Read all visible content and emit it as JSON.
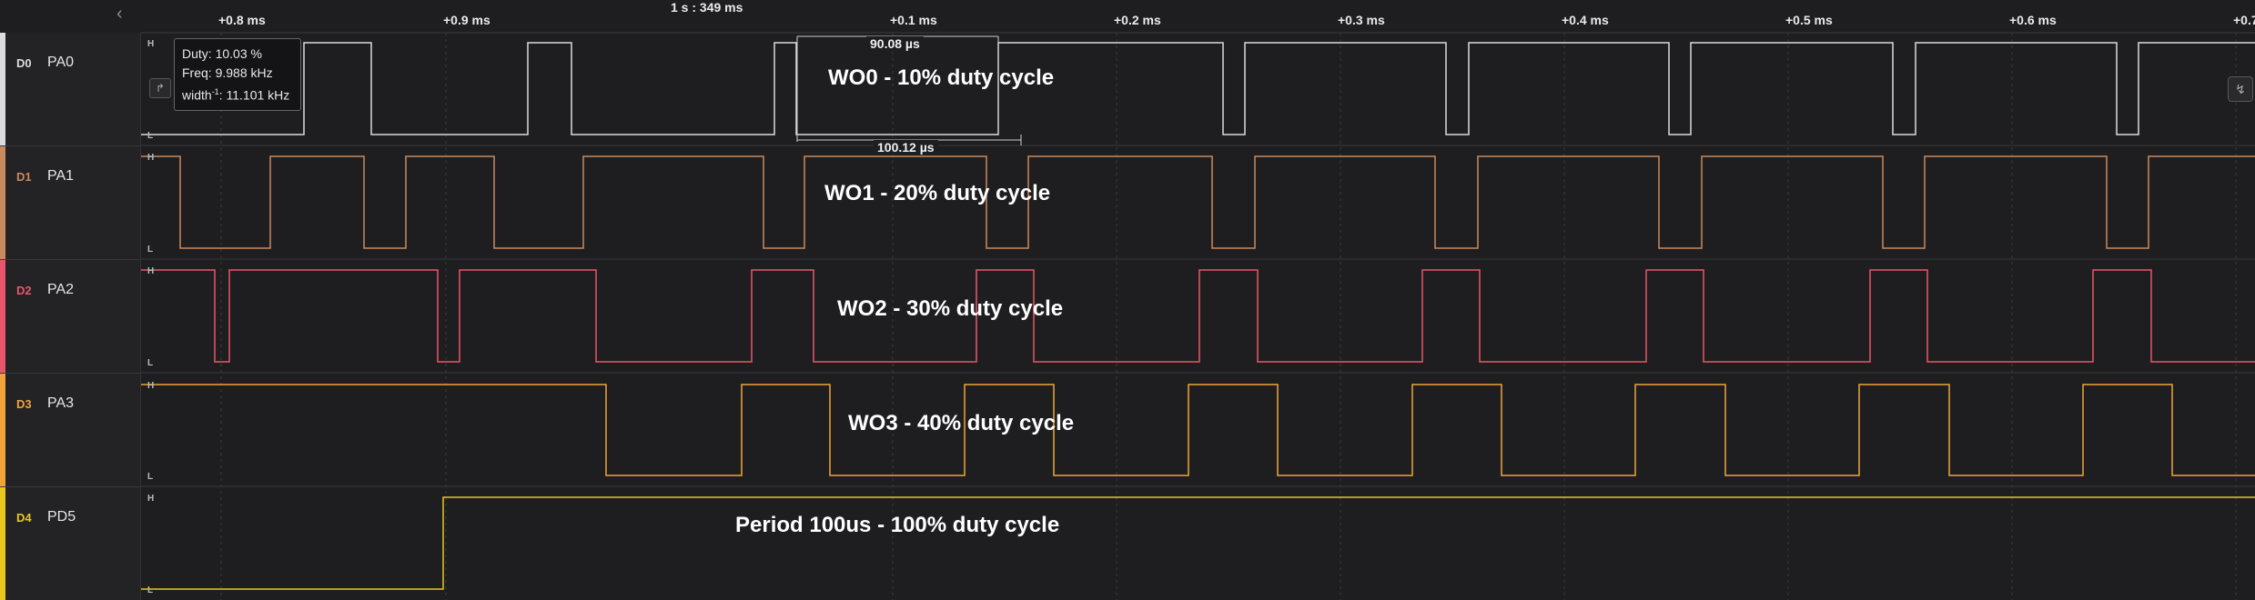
{
  "ruler": {
    "center_time": "1 s : 349 ms",
    "ticks": [
      {
        "label": "+0.8 ms"
      },
      {
        "label": "+0.9 ms"
      },
      {
        "label": "+0.1 ms"
      },
      {
        "label": "+0.2 ms"
      },
      {
        "label": "+0.3 ms"
      },
      {
        "label": "+0.4 ms"
      },
      {
        "label": "+0.5 ms"
      },
      {
        "label": "+0.6 ms"
      },
      {
        "label": "+0.7"
      }
    ]
  },
  "channels": [
    {
      "id": "D0",
      "name": "PA0",
      "color": "#dcdcdc"
    },
    {
      "id": "D1",
      "name": "PA1",
      "color": "#c98a5e"
    },
    {
      "id": "D2",
      "name": "PA2",
      "color": "#e8566b"
    },
    {
      "id": "D3",
      "name": "PA3",
      "color": "#f0a43a"
    },
    {
      "id": "D4",
      "name": "PD5",
      "color": "#e8c61e"
    }
  ],
  "level_labels": {
    "high": "H",
    "low": "L"
  },
  "tooltip": {
    "duty": "Duty: 10.03 %",
    "freq": "Freq: 9.988 kHz",
    "width_prefix": "width",
    "width_sup": "-1",
    "width_value": ": 11.101 kHz"
  },
  "measurements": {
    "width": "90.08 µs",
    "period": "100.12 µs"
  },
  "annotations": {
    "pa0": "WO0 - 10% duty cycle",
    "pa1": "WO1 - 20% duty cycle",
    "pa2": "WO2 - 30% duty cycle",
    "pa3": "WO3 - 40% duty cycle",
    "pd5": "Period 100us - 100% duty cycle"
  },
  "icons": {
    "back": "chevron-left-icon",
    "trigger": "edge-trigger-icon",
    "right_trigger": "edge-trigger-icon"
  }
}
